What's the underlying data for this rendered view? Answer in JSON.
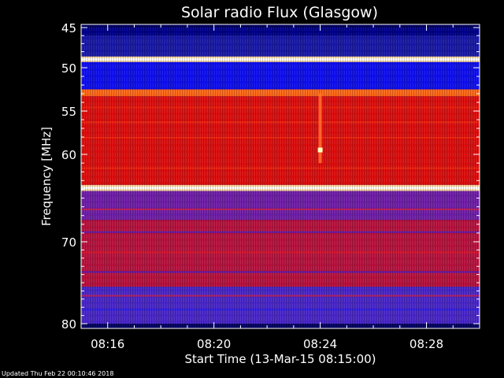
{
  "chart_data": {
    "type": "heatmap",
    "title": "Solar radio Flux (Glasgow)",
    "ylabel": "Frequency [MHz]",
    "xlabel": "Start Time (13-Mar-15 08:15:00)",
    "ylim": [
      80,
      45
    ],
    "y_ticks": [
      45,
      50,
      55,
      60,
      70,
      80
    ],
    "x_range_minutes": [
      8.15,
      8.3
    ],
    "x_ticks": [
      "08:16",
      "08:20",
      "08:24",
      "08:28"
    ],
    "colors": {
      "low": "#0000ff",
      "mid": "#ff0000",
      "high": "#ffff80",
      "background": "#000000"
    },
    "bands": [
      {
        "from": 45.0,
        "to": 46.0,
        "level": "dark-blue"
      },
      {
        "from": 46.0,
        "to": 48.6,
        "level": "blue-dark"
      },
      {
        "from": 48.6,
        "to": 49.3,
        "level": "bright"
      },
      {
        "from": 49.3,
        "to": 52.5,
        "level": "blue"
      },
      {
        "from": 52.5,
        "to": 53.3,
        "level": "orange"
      },
      {
        "from": 53.3,
        "to": 63.5,
        "level": "red"
      },
      {
        "from": 63.5,
        "to": 64.2,
        "level": "bright"
      },
      {
        "from": 64.2,
        "to": 67.5,
        "level": "purple"
      },
      {
        "from": 67.5,
        "to": 75.5,
        "level": "red-mix"
      },
      {
        "from": 75.5,
        "to": 80.0,
        "level": "blue-purple"
      }
    ],
    "burst": {
      "time": "08:24",
      "freq_from": 53.0,
      "freq_to": 61.0,
      "peak_freq": 59.5
    }
  },
  "footer": {
    "updated": "Updated Thu Feb 22 00:10:46 2018"
  }
}
